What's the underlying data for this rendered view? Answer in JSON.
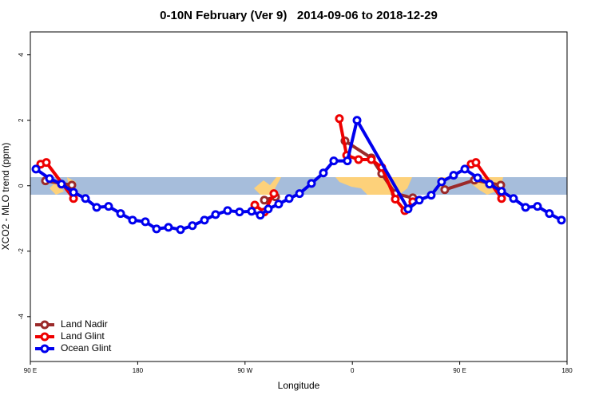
{
  "chart_data": {
    "type": "line",
    "title": "0-10N February (Ver 9)   2014-09-06 to 2018-12-29",
    "x_label": "Longitude",
    "y_label": "XCO2 - MLO trend (ppm)",
    "xlim": [
      90,
      540
    ],
    "ylim": [
      -5.37,
      4.7
    ],
    "xticks": [
      {
        "value": 90,
        "label": "90 E"
      },
      180,
      {
        "value": 270,
        "label": "90 W"
      },
      {
        "value": 360,
        "label": "0"
      },
      {
        "value": 450,
        "label": "90 E"
      },
      {
        "value": 540,
        "label": "180"
      }
    ],
    "yticks": [
      -4,
      -2,
      0,
      2,
      4
    ],
    "grid": false,
    "legend": "bottom left",
    "series": [
      {
        "name": "Land Nadir",
        "color": "#9b2a2a",
        "x": [
          102.7,
          124.8,
          null,
          286.2,
          295.6,
          null,
          353.8,
          375.9,
          384.6,
          396.0,
          410.7,
          null,
          437.5,
          462.3,
          484.4
        ],
        "values": [
          0.15,
          0.02,
          null,
          -0.44,
          -0.34,
          null,
          1.37,
          0.85,
          0.37,
          -0.24,
          -0.37,
          null,
          -0.12,
          0.17,
          0.02
        ]
      },
      {
        "name": "Land Glint",
        "color": "#ee0000",
        "x": [
          98.7,
          103.4,
          126.2,
          null,
          278.2,
          286.2,
          294.2,
          null,
          349.1,
          355.2,
          365.2,
          375.9,
          384.6,
          396.0,
          404.0,
          410.7,
          null,
          459.6,
          463.6,
          485.1
        ],
        "values": [
          0.66,
          0.71,
          -0.39,
          null,
          -0.59,
          -0.8,
          -0.24,
          null,
          2.05,
          0.93,
          0.8,
          0.8,
          0.56,
          -0.41,
          -0.76,
          -0.49,
          null,
          0.66,
          0.71,
          -0.39
        ]
      },
      {
        "name": "Ocean Glint",
        "color": "#0000ee",
        "x": [
          94.7,
          106.1,
          116.1,
          126.2,
          136.2,
          145.6,
          155.6,
          165.7,
          175.7,
          186.4,
          195.8,
          205.8,
          215.9,
          225.9,
          236.0,
          245.3,
          255.4,
          265.4,
          275.5,
          282.8,
          289.5,
          298.2,
          307.0,
          315.7,
          325.7,
          335.7,
          344.4,
          355.8,
          363.9,
          406.7,
          416.1,
          426.1,
          434.8,
          444.9,
          454.3,
          465.0,
          475.0,
          485.1,
          495.1,
          505.2,
          515.2,
          525.2,
          535.3
        ],
        "values": [
          0.51,
          0.22,
          0.05,
          -0.2,
          -0.39,
          -0.66,
          -0.63,
          -0.85,
          -1.05,
          -1.1,
          -1.32,
          -1.27,
          -1.34,
          -1.22,
          -1.05,
          -0.88,
          -0.76,
          -0.8,
          -0.78,
          -0.9,
          -0.71,
          -0.56,
          -0.39,
          -0.24,
          0.07,
          0.39,
          0.76,
          0.76,
          2.0,
          -0.71,
          -0.44,
          -0.29,
          0.12,
          0.32,
          0.51,
          0.24,
          0.05,
          -0.17,
          -0.39,
          -0.66,
          -0.63,
          -0.85,
          -1.05
        ]
      }
    ]
  }
}
